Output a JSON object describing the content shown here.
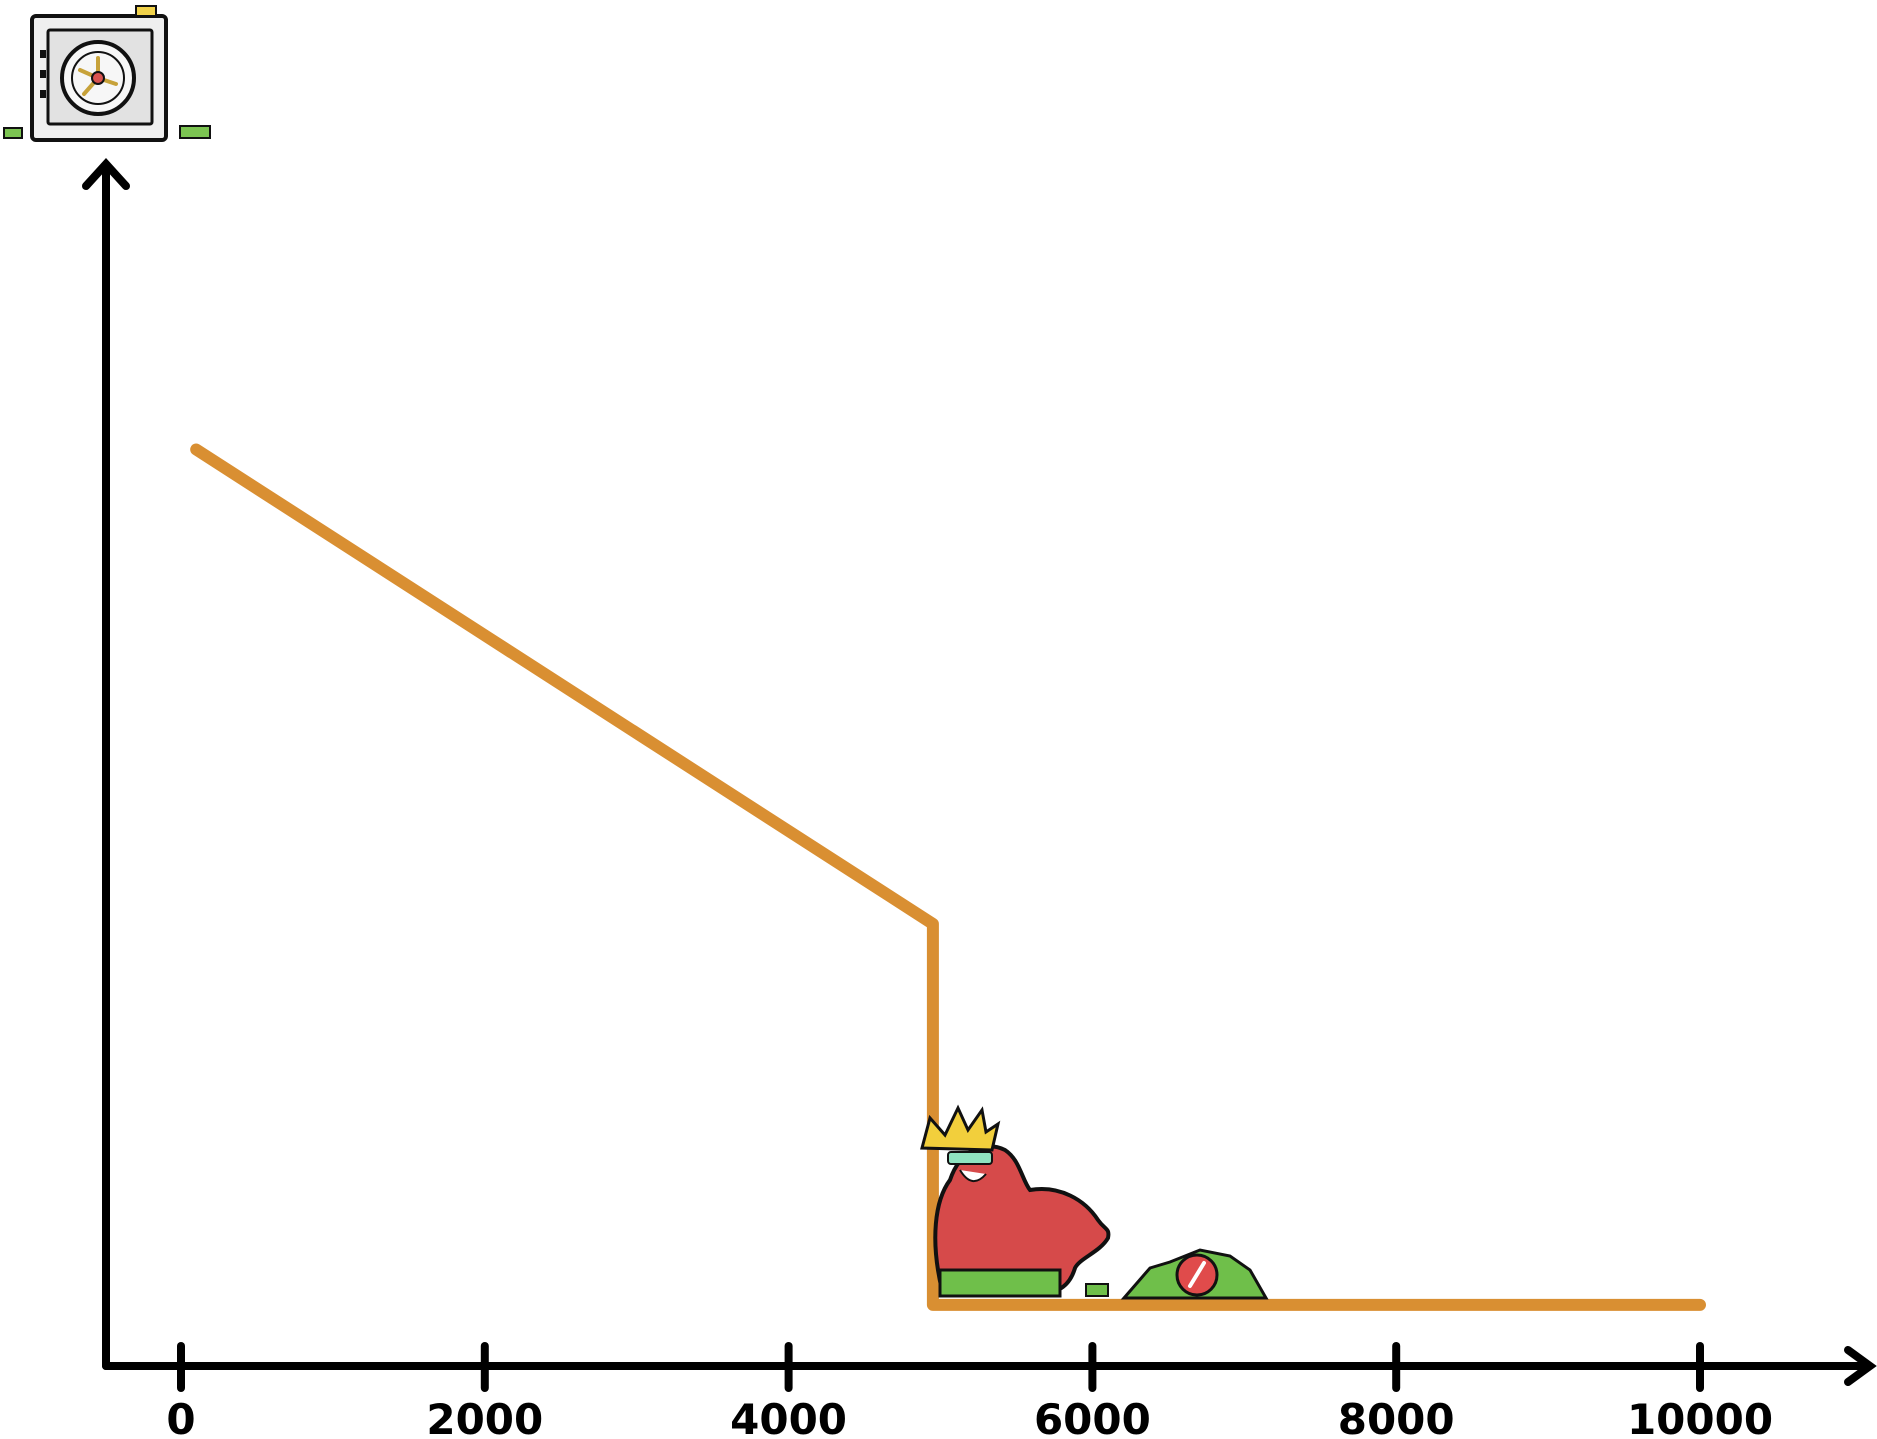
{
  "chart_data": {
    "type": "line",
    "title": "",
    "xlabel": "",
    "ylabel": "",
    "xlim": [
      -500,
      11300
    ],
    "ylim": [
      0,
      100
    ],
    "x_ticks": [
      0,
      2000,
      4000,
      6000,
      8000,
      10000
    ],
    "x_tick_labels": [
      "0",
      "2000",
      "4000",
      "6000",
      "8000",
      "10000"
    ],
    "y_ticks": [],
    "grid": false,
    "legend": "none",
    "series": [
      {
        "points": [
          {
            "x": 100,
            "y": 76.5
          },
          {
            "x": 4950,
            "y": 36.9
          },
          {
            "x": 4950,
            "y": 5.1
          },
          {
            "x": 10000,
            "y": 5.1
          }
        ]
      }
    ]
  },
  "colors": {
    "series_line": "#D98F32",
    "axis": "#000000",
    "background": "#ffffff"
  },
  "icons": {
    "top_left": "vault-safe-icon",
    "character": "red-king-mascot-icon",
    "coin_pile": "money-pile-coin-icon"
  }
}
